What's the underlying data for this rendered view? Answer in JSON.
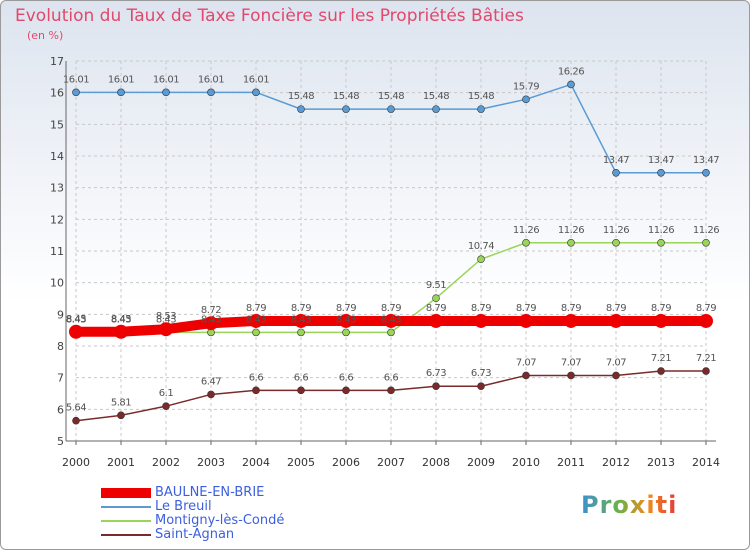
{
  "brand": "Proxiti",
  "chart_data": {
    "type": "line",
    "title": "Evolution du Taux de Taxe Foncière sur les Propriétés Bâties",
    "ylabel": "(en %)",
    "xlabel": "",
    "ylim": [
      5,
      17
    ],
    "y_ticks": [
      5,
      6,
      7,
      8,
      9,
      10,
      11,
      12,
      13,
      14,
      15,
      16,
      17
    ],
    "grid": true,
    "legend_position": "bottom-left",
    "x": [
      "2000",
      "2001",
      "2002",
      "2003",
      "2004",
      "2005",
      "2006",
      "2007",
      "2008",
      "2009",
      "2010",
      "2011",
      "2012",
      "2013",
      "2014"
    ],
    "series": [
      {
        "name": "BAULNE-EN-BRIE",
        "color": "#ee0000",
        "values": [
          8.45,
          8.45,
          8.53,
          8.72,
          8.79,
          8.79,
          8.79,
          8.79,
          8.79,
          8.79,
          8.79,
          8.79,
          8.79,
          8.79,
          8.79
        ],
        "labels": [
          "8.45",
          "8.45",
          "8.53",
          "8.72",
          "8.79",
          "8.79",
          "8.79",
          "8.79",
          "8.79",
          "8.79",
          "8.79",
          "8.79",
          "8.79",
          "8.79",
          "8.79"
        ]
      },
      {
        "name": "Le Breuil",
        "color": "#5a9bd4",
        "values": [
          16.01,
          16.01,
          16.01,
          16.01,
          16.01,
          15.48,
          15.48,
          15.48,
          15.48,
          15.48,
          15.79,
          16.26,
          13.47,
          13.47,
          13.47
        ],
        "labels": [
          "16.01",
          "16.01",
          "16.01",
          "16.01",
          "16.01",
          "15.48",
          "15.48",
          "15.48",
          "15.48",
          "15.48",
          "15.79",
          "16.26",
          "13.47",
          "13.47",
          "13.47"
        ]
      },
      {
        "name": "Montigny-lès-Condé",
        "color": "#9ad45a",
        "values": [
          8.43,
          8.43,
          8.43,
          8.43,
          8.43,
          8.43,
          8.43,
          8.43,
          9.51,
          10.74,
          11.26,
          11.26,
          11.26,
          11.26,
          11.26
        ],
        "labels": [
          "8.43",
          "8.43",
          "8.43",
          "8.43",
          "8.43",
          "8.43",
          "8.43",
          "8.43",
          "9.51",
          "10.74",
          "11.26",
          "11.26",
          "11.26",
          "11.26",
          "11.26"
        ]
      },
      {
        "name": "Saint-Agnan",
        "color": "#7a2a2a",
        "values": [
          5.64,
          5.81,
          6.1,
          6.47,
          6.6,
          6.6,
          6.6,
          6.6,
          6.73,
          6.73,
          7.07,
          7.07,
          7.07,
          7.21,
          7.21
        ],
        "labels": [
          "5.64",
          "5.81",
          "6.1",
          "6.47",
          "6.6",
          "6.6",
          "6.6",
          "6.6",
          "6.73",
          "6.73",
          "7.07",
          "7.07",
          "7.07",
          "7.21",
          "7.21"
        ]
      }
    ]
  }
}
